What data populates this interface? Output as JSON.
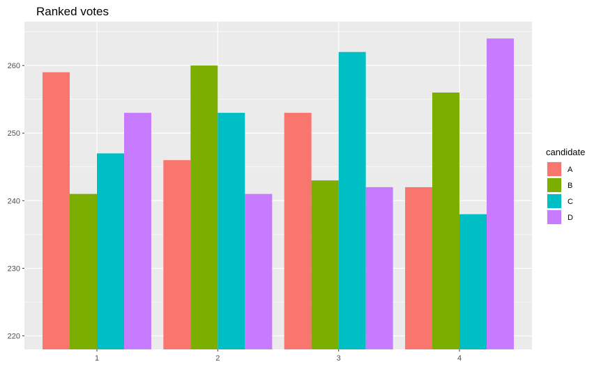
{
  "chart_data": {
    "type": "bar",
    "title": "Ranked votes",
    "xlabel": "",
    "ylabel": "",
    "categories": [
      "1",
      "2",
      "3",
      "4"
    ],
    "series": [
      {
        "name": "A",
        "values": [
          259,
          246,
          253,
          242
        ],
        "color": "#F8766D"
      },
      {
        "name": "B",
        "values": [
          241,
          260,
          243,
          256
        ],
        "color": "#7CAE00"
      },
      {
        "name": "C",
        "values": [
          247,
          253,
          262,
          238
        ],
        "color": "#00BFC4"
      },
      {
        "name": "D",
        "values": [
          253,
          241,
          242,
          264
        ],
        "color": "#C77CFF"
      }
    ],
    "ylim": [
      218,
      266.5
    ],
    "yticks": [
      220,
      230,
      240,
      250,
      260
    ],
    "grid": true,
    "legend": {
      "title": "candidate",
      "position": "right"
    },
    "panel_background": "#EBEBEB"
  }
}
